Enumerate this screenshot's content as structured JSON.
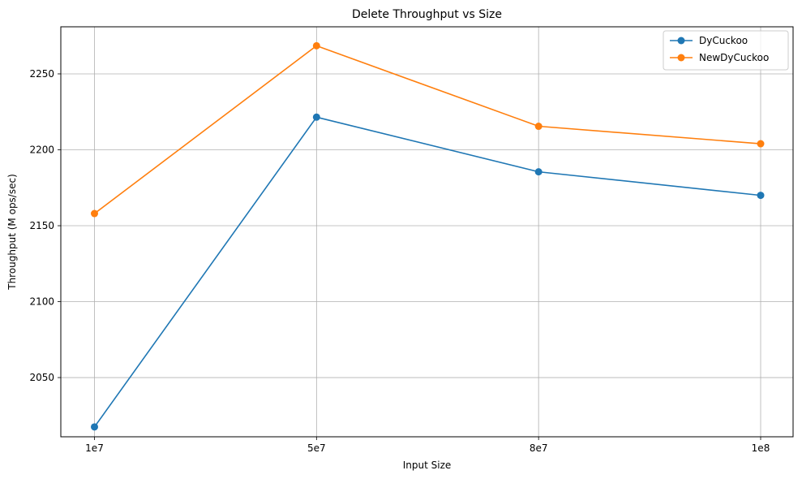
{
  "chart_data": {
    "type": "line",
    "title": "Delete Throughput vs Size",
    "xlabel": "Input Size",
    "ylabel": "Throughput (M ops/sec)",
    "categories": [
      "1e7",
      "5e7",
      "8e7",
      "1e8"
    ],
    "ylim": [
      2011,
      2281
    ],
    "yticks": [
      2050,
      2100,
      2150,
      2200,
      2250
    ],
    "grid": true,
    "legend_position": "top-right",
    "series": [
      {
        "name": "DyCuckoo",
        "color": "#1f77b4",
        "marker": "circle",
        "values": [
          2017.5,
          2221.5,
          2185.5,
          2170
        ]
      },
      {
        "name": "NewDyCuckoo",
        "color": "#ff7f0e",
        "marker": "circle",
        "values": [
          2158,
          2268.5,
          2215.5,
          2204
        ]
      }
    ]
  }
}
